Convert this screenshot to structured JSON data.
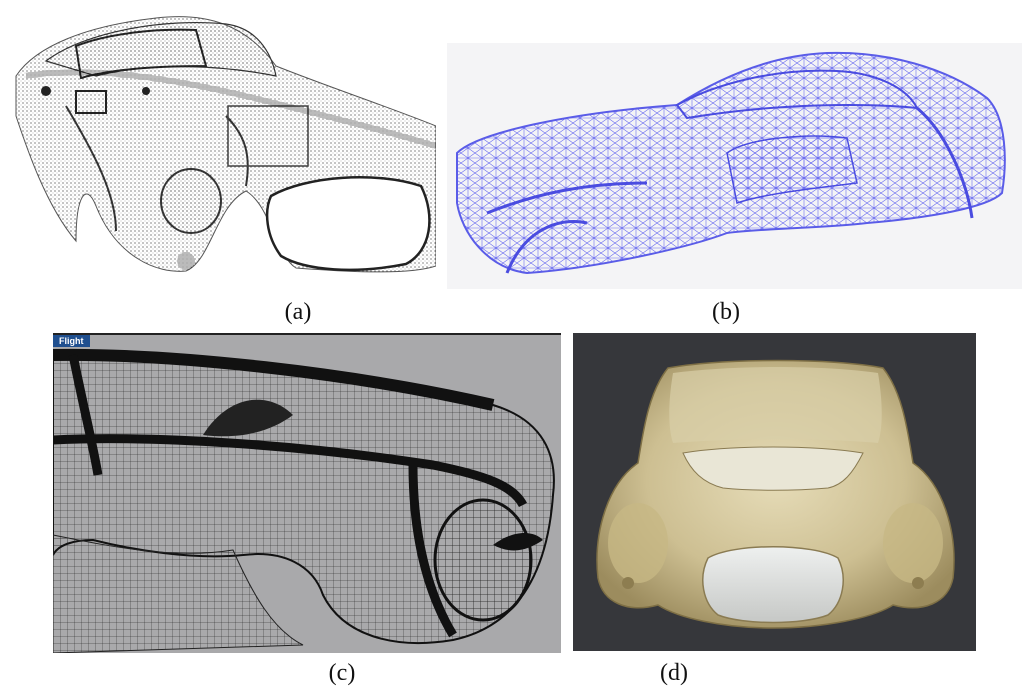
{
  "figure": {
    "captions": {
      "a": "(a)",
      "b": "(b)",
      "c": "(c)",
      "d": "(d)"
    },
    "viewport_label": "Flight"
  },
  "colors": {
    "wire_blue": "#6a6cf0",
    "point_cloud": "#2a2a2a",
    "viewport_bg": "#a9a9ab",
    "resin": "#cdbf92",
    "photo_bg": "#36373b",
    "viewport_tag": "#1f4f8f"
  }
}
